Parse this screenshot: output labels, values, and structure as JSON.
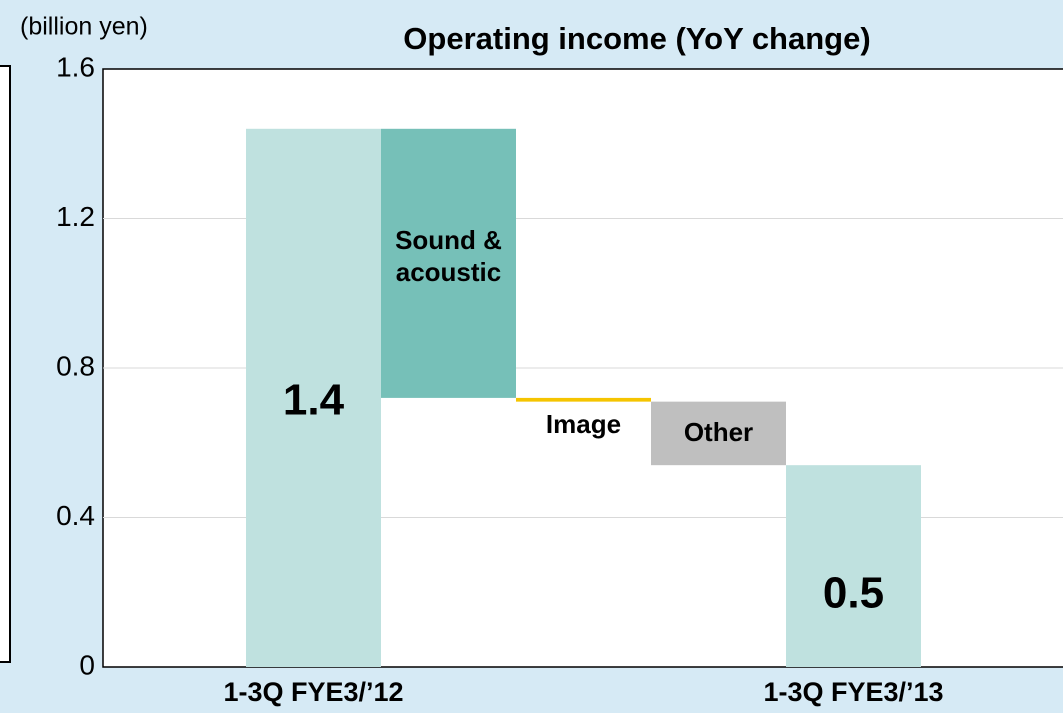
{
  "chart_data": {
    "type": "waterfall",
    "title": "Operating income (YoY change)",
    "y_axis_label": "(billion yen)",
    "categories": [
      "1-3Q FYE3/’12",
      "Sound & acoustic",
      "Image",
      "Other",
      "1-3Q FYE3/’13"
    ],
    "values": [
      1.44,
      -0.72,
      -0.01,
      -0.17,
      0.54
    ],
    "value_labels": [
      "1.4",
      null,
      null,
      null,
      "0.5"
    ],
    "totals": [
      true,
      false,
      false,
      false,
      true
    ],
    "colors": [
      "#bfe1df",
      "#76c0b8",
      "#f5c400",
      "#bfbfbf",
      "#bfe1df"
    ],
    "ylim": [
      0,
      1.6
    ],
    "yticks": [
      0,
      0.4,
      0.8,
      1.2,
      1.6
    ],
    "grid": true
  }
}
